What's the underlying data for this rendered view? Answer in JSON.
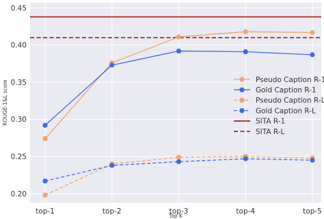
{
  "chart_data": {
    "type": "line",
    "title": "",
    "xlabel": "Top K",
    "ylabel": "ROUGE-1&L score",
    "categories": [
      "top-1",
      "top-2",
      "top-3",
      "top-4",
      "top-5"
    ],
    "ylim": [
      0.188,
      0.457
    ],
    "yticks": [
      0.2,
      0.25,
      0.3,
      0.35,
      0.4,
      0.45
    ],
    "ytick_labels": [
      "0.20",
      "0.25",
      "0.30",
      "0.35",
      "0.40",
      "0.45"
    ],
    "grid": true,
    "legend_position": "center-right",
    "series": [
      {
        "name": "Pseudo Caption R-1",
        "values": [
          0.274,
          0.376,
          0.411,
          0.418,
          0.417
        ],
        "color": "#f4a26b",
        "style": "solid",
        "marker": "circle"
      },
      {
        "name": "Gold Caption R-1",
        "values": [
          0.292,
          0.373,
          0.392,
          0.391,
          0.387
        ],
        "color": "#4169e1",
        "style": "solid",
        "marker": "circle"
      },
      {
        "name": "Pseudo Caption R-L",
        "values": [
          0.198,
          0.24,
          0.249,
          0.25,
          0.248
        ],
        "color": "#f4a26b",
        "style": "dashed",
        "marker": "circle"
      },
      {
        "name": "Gold Caption R-L",
        "values": [
          0.217,
          0.238,
          0.243,
          0.247,
          0.245
        ],
        "color": "#4169e1",
        "style": "dashed",
        "marker": "circle"
      }
    ],
    "reference_lines": [
      {
        "name": "SITA R-1",
        "value": 0.438,
        "color": "#b22222",
        "style": "solid"
      },
      {
        "name": "SITA R-L",
        "value": 0.41,
        "color": "#b22222",
        "style": "dashed"
      }
    ]
  }
}
